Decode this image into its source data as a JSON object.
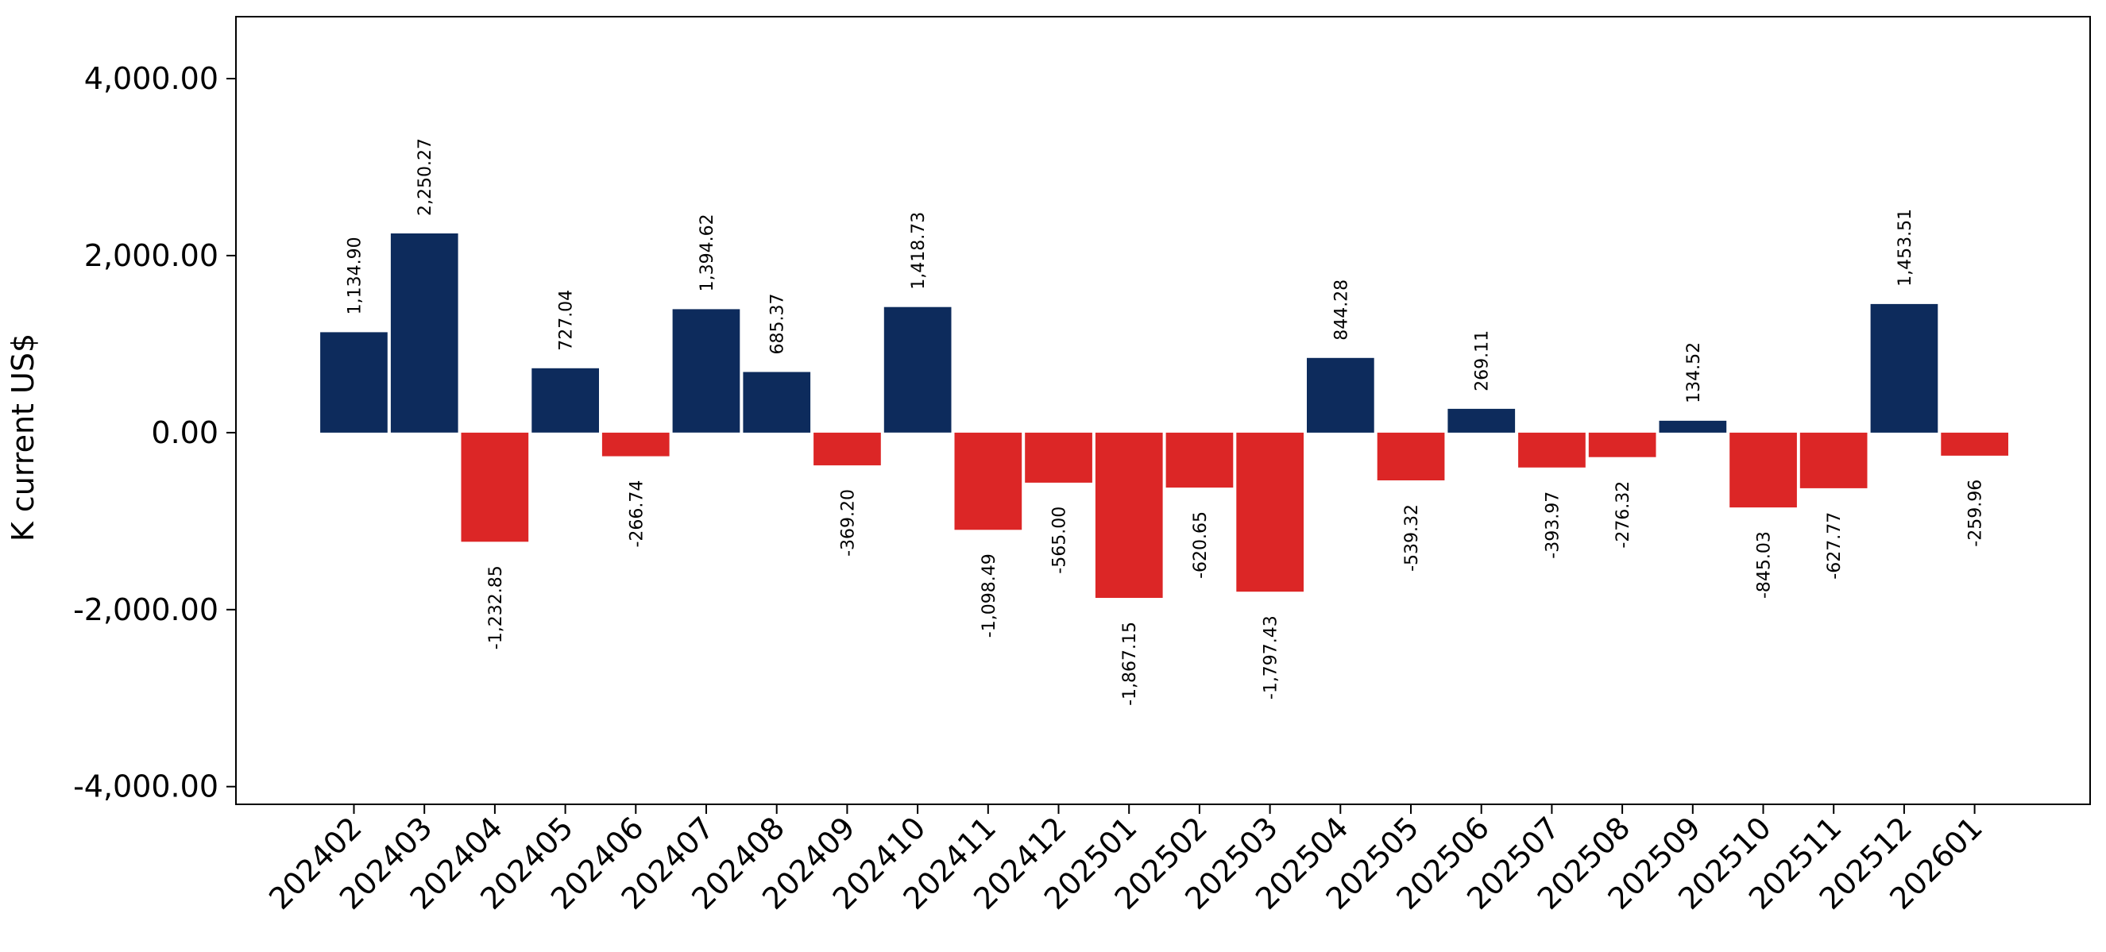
{
  "chart_data": {
    "type": "bar",
    "title": "",
    "xlabel": "",
    "ylabel": "K current US$",
    "ylim": [
      -4200,
      4700
    ],
    "yticks": [
      -4000,
      -2000,
      0,
      2000,
      4000
    ],
    "grid": false,
    "legend": "none",
    "positive_color": "#0d2b5c",
    "negative_color": "#dc2626",
    "categories": [
      "202402",
      "202403",
      "202404",
      "202405",
      "202406",
      "202407",
      "202408",
      "202409",
      "202410",
      "202411",
      "202412",
      "202501",
      "202502",
      "202503",
      "202504",
      "202505",
      "202506",
      "202507",
      "202508",
      "202509",
      "202510",
      "202511",
      "202512",
      "202601"
    ],
    "values": [
      1134.9,
      2250.27,
      -1232.85,
      727.04,
      -266.74,
      1394.62,
      685.37,
      -369.2,
      1418.73,
      -1098.49,
      -565.0,
      -1867.15,
      -620.65,
      -1797.43,
      844.28,
      -539.32,
      269.11,
      -393.97,
      -276.32,
      134.52,
      -845.03,
      -627.77,
      1453.51,
      -259.96
    ],
    "value_labels": [
      "1,134.90",
      "2,250.27",
      "-1,232.85",
      "727.04",
      "-266.74",
      "1,394.62",
      "685.37",
      "-369.20",
      "1,418.73",
      "-1,098.49",
      "-565.00",
      "-1,867.15",
      "-620.65",
      "-1,797.43",
      "844.28",
      "-539.32",
      "269.11",
      "-393.97",
      "-276.32",
      "134.52",
      "-845.03",
      "-627.77",
      "1,453.51",
      "-259.96"
    ],
    "ytick_labels": [
      "-4,000.00",
      "-2,000.00",
      "0.00",
      "2,000.00",
      "4,000.00"
    ]
  }
}
